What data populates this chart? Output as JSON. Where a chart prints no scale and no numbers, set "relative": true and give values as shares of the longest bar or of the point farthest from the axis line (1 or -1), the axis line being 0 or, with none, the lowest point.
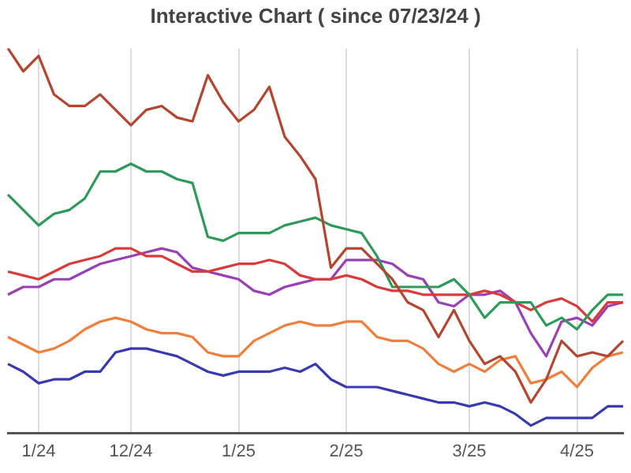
{
  "chart_data": {
    "type": "line",
    "title": "Interactive Chart ( since 07/23/24 )",
    "relative": true,
    "grid": "x",
    "legend": false,
    "categories": [
      null,
      null,
      "1/24",
      null,
      null,
      null,
      null,
      null,
      "12/24",
      null,
      null,
      null,
      null,
      null,
      null,
      "1/25",
      null,
      null,
      null,
      null,
      null,
      null,
      "2/25",
      null,
      null,
      null,
      null,
      null,
      null,
      null,
      "3/25",
      null,
      null,
      null,
      null,
      null,
      null,
      "4/25",
      null,
      null,
      null
    ],
    "series": [
      {
        "color": "#b5452f",
        "values": [
          1.0,
          0.94,
          0.98,
          0.88,
          0.85,
          0.85,
          0.88,
          0.84,
          0.8,
          0.84,
          0.85,
          0.82,
          0.81,
          0.93,
          0.86,
          0.81,
          0.84,
          0.9,
          0.77,
          0.72,
          0.66,
          0.43,
          0.48,
          0.48,
          0.44,
          0.4,
          0.34,
          0.32,
          0.25,
          0.32,
          0.24,
          0.18,
          0.2,
          0.16,
          0.08,
          0.14,
          0.24,
          0.2,
          0.21,
          0.2,
          0.24
        ]
      },
      {
        "color": "#2e9a5a",
        "values": [
          0.62,
          0.58,
          0.54,
          0.57,
          0.58,
          0.61,
          0.68,
          0.68,
          0.7,
          0.68,
          0.68,
          0.66,
          0.65,
          0.51,
          0.5,
          0.52,
          0.52,
          0.52,
          0.54,
          0.55,
          0.56,
          0.54,
          0.53,
          0.52,
          0.46,
          0.38,
          0.38,
          0.38,
          0.38,
          0.4,
          0.36,
          0.3,
          0.34,
          0.34,
          0.34,
          0.28,
          0.3,
          0.27,
          0.32,
          0.36,
          0.36
        ]
      },
      {
        "color": "#d93b3b",
        "values": [
          0.42,
          0.41,
          0.4,
          0.42,
          0.44,
          0.45,
          0.46,
          0.48,
          0.48,
          0.46,
          0.46,
          0.44,
          0.42,
          0.42,
          0.43,
          0.44,
          0.44,
          0.45,
          0.44,
          0.41,
          0.4,
          0.4,
          0.41,
          0.4,
          0.38,
          0.37,
          0.37,
          0.36,
          0.36,
          0.36,
          0.36,
          0.37,
          0.36,
          0.34,
          0.32,
          0.34,
          0.35,
          0.33,
          0.29,
          0.34,
          0.34
        ]
      },
      {
        "color": "#9b3fb5",
        "values": [
          0.36,
          0.38,
          0.38,
          0.4,
          0.4,
          0.42,
          0.44,
          0.45,
          0.46,
          0.47,
          0.48,
          0.47,
          0.43,
          0.42,
          0.41,
          0.4,
          0.37,
          0.36,
          0.38,
          0.39,
          0.4,
          0.4,
          0.45,
          0.45,
          0.45,
          0.44,
          0.41,
          0.4,
          0.34,
          0.33,
          0.36,
          0.36,
          0.37,
          0.34,
          0.26,
          0.2,
          0.29,
          0.3,
          0.28,
          0.33,
          0.34
        ]
      },
      {
        "color": "#f07f3c",
        "values": [
          0.25,
          0.23,
          0.21,
          0.22,
          0.24,
          0.27,
          0.29,
          0.3,
          0.29,
          0.27,
          0.26,
          0.26,
          0.25,
          0.21,
          0.2,
          0.2,
          0.24,
          0.26,
          0.28,
          0.29,
          0.28,
          0.28,
          0.29,
          0.29,
          0.25,
          0.24,
          0.24,
          0.22,
          0.18,
          0.16,
          0.18,
          0.16,
          0.19,
          0.2,
          0.13,
          0.14,
          0.16,
          0.12,
          0.17,
          0.2,
          0.21
        ]
      },
      {
        "color": "#3a3ab0",
        "values": [
          0.18,
          0.16,
          0.13,
          0.14,
          0.14,
          0.16,
          0.16,
          0.21,
          0.22,
          0.22,
          0.21,
          0.2,
          0.18,
          0.16,
          0.15,
          0.16,
          0.16,
          0.16,
          0.17,
          0.16,
          0.18,
          0.14,
          0.12,
          0.12,
          0.12,
          0.11,
          0.1,
          0.09,
          0.08,
          0.08,
          0.07,
          0.08,
          0.07,
          0.05,
          0.02,
          0.04,
          0.04,
          0.04,
          0.04,
          0.07,
          0.07
        ]
      }
    ]
  }
}
